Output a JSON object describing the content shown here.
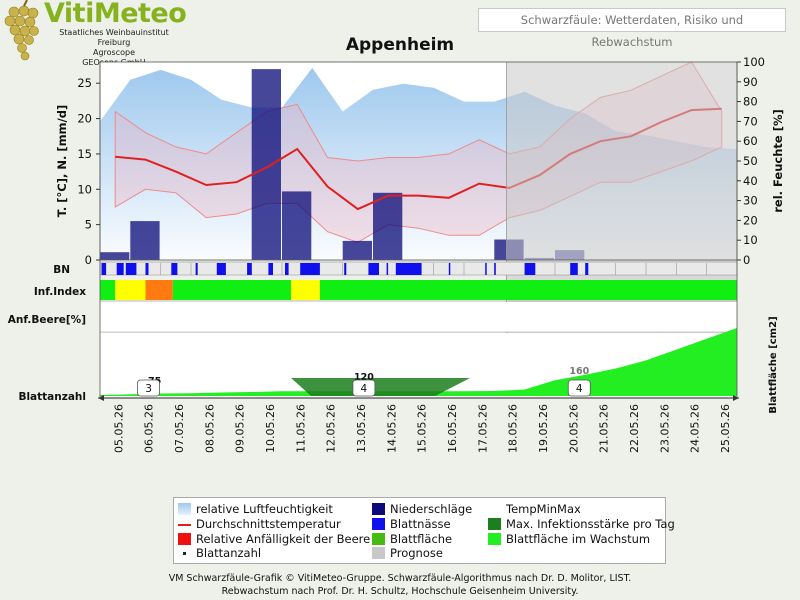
{
  "header": {
    "logo_title": "VitiMeteo",
    "logo_lines": [
      "Staatliches Weinbauinstitut Freiburg",
      "Agroscope",
      "GEOsens GmbH"
    ],
    "subtitle": "Schwarzfäule: Wetterdaten, Risiko und Rebwachstum",
    "location": "Appenheim"
  },
  "colors": {
    "humidity": "#9ec8ee",
    "rain": "#0a0a78",
    "temp": "#e02020",
    "leafwet": "#1010ee",
    "infection_max": "#1c7e1c",
    "susceptibility": "#ee1111",
    "leafarea": "#44bb11",
    "growth": "#22ee22",
    "forecast": "#c8c8c8"
  },
  "chart_data": {
    "type": "line",
    "dates": [
      "05.05.26",
      "06.05.26",
      "07.05.26",
      "08.05.26",
      "09.05.26",
      "10.05.26",
      "11.05.26",
      "12.05.26",
      "13.05.26",
      "14.05.26",
      "15.05.26",
      "16.05.26",
      "17.05.26",
      "18.05.26",
      "19.05.26",
      "20.05.26",
      "21.05.26",
      "22.05.26",
      "23.05.26",
      "24.05.26",
      "25.05.26"
    ],
    "forecast_from": "18.05.26",
    "left_axis": {
      "label": "T. [°C], N. [mm/d]",
      "ylim": [
        0,
        28
      ],
      "ticks": [
        0,
        5,
        10,
        15,
        20,
        25
      ]
    },
    "right_axis": {
      "label": "rel. Feuchte [%]",
      "ylim": [
        0,
        100
      ],
      "ticks": [
        0,
        10,
        20,
        30,
        40,
        50,
        60,
        70,
        80,
        90,
        100
      ]
    },
    "humidity": [
      70,
      91,
      96,
      91,
      81,
      77,
      77,
      97,
      75,
      86,
      89,
      87,
      80,
      80,
      85,
      78,
      74,
      65,
      63,
      60,
      57,
      56
    ],
    "temp_mean": [
      14.6,
      14.2,
      12.5,
      10.6,
      11,
      13.1,
      15.7,
      10.4,
      7.2,
      9.1,
      9.1,
      8.8,
      10.8,
      10.2,
      12,
      15,
      16.8,
      17.5,
      19.5,
      21.2,
      21.4
    ],
    "temp_max": [
      21,
      18,
      16,
      15,
      18,
      21,
      22,
      14.5,
      14,
      14.5,
      14.5,
      15,
      17,
      15,
      16,
      20,
      23,
      24,
      26,
      28,
      21
    ],
    "temp_min": [
      7.5,
      10,
      9.5,
      6,
      6.5,
      8,
      8,
      4,
      2.5,
      5,
      4.5,
      3.5,
      3.5,
      6,
      7,
      9,
      11,
      11,
      12.5,
      14,
      16
    ],
    "rain": [
      1.1,
      5.5,
      0,
      0,
      0,
      27,
      9.7,
      0,
      2.7,
      9.5,
      0,
      0,
      0,
      2.9,
      0.3,
      1.4,
      0,
      0,
      0,
      0,
      0
    ],
    "rain_label": "N",
    "leafwet_label": "BN",
    "leafwet": [
      [
        0.05,
        0.2
      ],
      [
        0.55,
        0.78
      ],
      [
        0.85,
        1.2
      ],
      [
        1.5,
        1.6
      ],
      [
        2.35,
        2.55
      ],
      [
        3.15,
        3.22
      ],
      [
        3.85,
        4.15
      ],
      [
        4.85,
        5.0
      ],
      [
        5.55,
        5.7
      ],
      [
        6.1,
        6.22
      ],
      [
        6.6,
        7.25
      ],
      [
        8.05,
        8.12
      ],
      [
        8.85,
        9.2
      ],
      [
        9.45,
        9.5
      ],
      [
        9.75,
        10.6
      ],
      [
        11.5,
        11.55
      ],
      [
        12.7,
        12.75
      ],
      [
        13.0,
        13.05
      ],
      [
        14.0,
        14.35
      ],
      [
        15.5,
        15.75
      ],
      [
        16.0,
        16.1
      ]
    ],
    "infection_label": "Inf.Index",
    "infection": [
      {
        "from": 0,
        "to": 0.5,
        "level": "green"
      },
      {
        "from": 0.5,
        "to": 1.5,
        "level": "yellow"
      },
      {
        "from": 1.5,
        "to": 2.4,
        "level": "orange"
      },
      {
        "from": 2.4,
        "to": 6.3,
        "level": "green"
      },
      {
        "from": 6.3,
        "to": 7.25,
        "level": "yellow"
      },
      {
        "from": 7.25,
        "to": 21,
        "level": "green"
      }
    ],
    "berry_label": "Anf.Beere[%]",
    "leaf_label": "Blattanzahl",
    "leafarea_label": "Blattfläche [cm2]",
    "leaf_counts": [
      {
        "x": 1.6,
        "count": "3"
      },
      {
        "x": 8.7,
        "count": "4"
      },
      {
        "x": 15.8,
        "count": "4"
      }
    ],
    "leafarea_annotations": [
      {
        "x": 1.8,
        "value": "75"
      },
      {
        "x": 8.7,
        "value": "120"
      },
      {
        "x": 15.8,
        "value": "160"
      }
    ],
    "leafarea_band": [
      0.2,
      0.35,
      0.5,
      0.55,
      0.7,
      0.8,
      0.95,
      0.95,
      0.95,
      0.95,
      0.95,
      0.95,
      0.95,
      1.0,
      1.3,
      1.6,
      1.9,
      2.25,
      2.7,
      3.3,
      3.9,
      4.5
    ],
    "leafarea_infection": [
      {
        "from": 6.3,
        "to": 12.2
      }
    ]
  },
  "legend": [
    {
      "label": "relative Luftfeuchtigkeit",
      "symbol": "box-gradient",
      "color": "#9ec8ee"
    },
    {
      "label": "Niederschläge",
      "symbol": "box",
      "color": "#0a0a78"
    },
    {
      "label": "TempMinMax",
      "symbol": "none",
      "color": ""
    },
    {
      "label": "Durchschnittstemperatur",
      "symbol": "line",
      "color": "#e02020"
    },
    {
      "label": "Blattnässe",
      "symbol": "box",
      "color": "#1010ee"
    },
    {
      "label": "Max. Infektionsstärke pro Tag",
      "symbol": "box",
      "color": "#1c7e1c"
    },
    {
      "label": "Relative Anfälligkeit der Beere",
      "symbol": "box",
      "color": "#ee1111"
    },
    {
      "label": "Blattfläche",
      "symbol": "box",
      "color": "#44bb11"
    },
    {
      "label": "Blattfläche im Wachstum",
      "symbol": "box",
      "color": "#22ee22"
    },
    {
      "label": "Blattanzahl",
      "symbol": "dot",
      "color": "#222222"
    },
    {
      "label": "Prognose",
      "symbol": "box",
      "color": "#c8c8c8"
    }
  ],
  "footer": {
    "line1": "VM Schwarzfäule-Grafik © VitiMeteo-Gruppe. Schwarzfäule-Algorithmus nach Dr. D. Molitor, LIST.",
    "line2": "Rebwachstum nach Prof. Dr. H. Schultz, Hochschule Geisenheim University."
  }
}
